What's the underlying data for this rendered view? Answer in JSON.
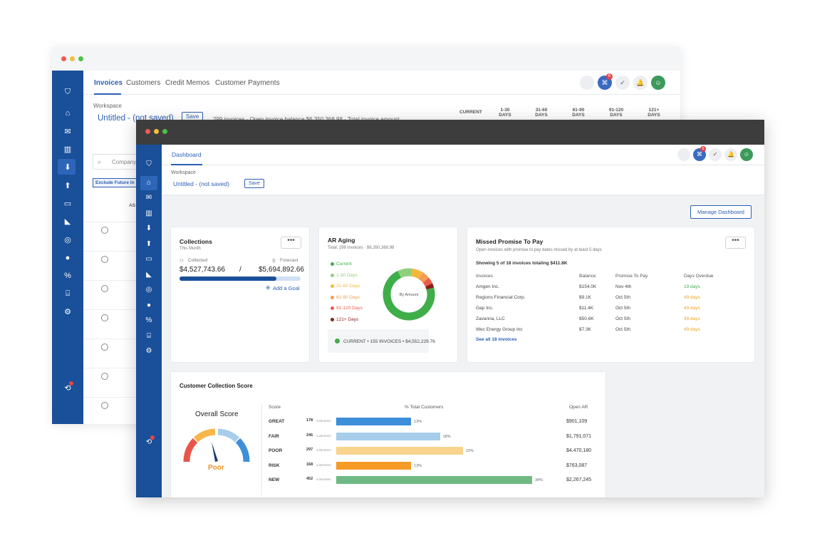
{
  "colors": {
    "sidebar": "#1a4f99",
    "accent": "#2c5fb3",
    "green": "#3fae49",
    "yellow": "#f5b83d",
    "orange": "#f39c53",
    "red": "#ea5a4b",
    "darkred": "#8a1d1d"
  },
  "back": {
    "tabs": [
      "Invoices",
      "Customers",
      "Credit Memos",
      "Customer Payments"
    ],
    "workspace_label": "Workspace",
    "workspace_name": "Untitled - (not saved)",
    "save_label": "Save",
    "summary": "299 invoices · Open invoice balance $6,350,368.98 · Total invoice amount",
    "aging_headers": [
      "CURRENT",
      "1-30 DAYS",
      "31-60 DAYS",
      "61-90 DAYS",
      "91-120 DAYS",
      "121+ DAYS"
    ],
    "search_placeholder": "Company",
    "filter_chip": "Exclude Future In",
    "col_partial": "AS",
    "badge": "6"
  },
  "front": {
    "tab": "Dashboard",
    "workspace_label": "Workspace",
    "workspace_name": "Untitled - (not saved)",
    "save_label": "Save",
    "manage_label": "Manage Dashboard",
    "badge": "6",
    "collections": {
      "title": "Collections",
      "sub": "This Month",
      "collected_label": "Collected",
      "forecast_label": "Forecast",
      "collected": "$4,527,743.66",
      "sep": "/",
      "forecast": "$5,694,892.66",
      "progress": 0.8,
      "goal": "Add a Goal"
    },
    "aging": {
      "title": "AR Aging",
      "sub": "Total: 299 Invoices · $6,350,368.98",
      "center": "By Amount",
      "legend": [
        {
          "label": "Current",
          "color": "#3fae49"
        },
        {
          "label": "1-30 Days",
          "color": "#8fd07c"
        },
        {
          "label": "31-60 Days",
          "color": "#f5b83d"
        },
        {
          "label": "61-90 Days",
          "color": "#f39c53"
        },
        {
          "label": "91-120 Days",
          "color": "#ea5a4b"
        },
        {
          "label": "121+ Days",
          "color": "#8a1d1d"
        }
      ],
      "slices": [
        0.72,
        0.09,
        0.07,
        0.05,
        0.04,
        0.03
      ],
      "footer": "CURRENT • 155 INVOICES • $4,552,229.76"
    },
    "missed": {
      "title": "Missed Promise To Pay",
      "sub": "Open invoices with promise to pay dates missed by at least 5 days",
      "showing": "Showing 5 of 18 invoices totaling $411.8K",
      "headers": [
        "Invoices",
        "Balance",
        "Promise To Pay",
        "Days Overdue"
      ],
      "rows": [
        [
          "Amgen Inc.",
          "$154.0K",
          "Nov 4th",
          "19 days"
        ],
        [
          "Regions Financial Corp.",
          "$9.1K",
          "Oct 5th",
          "49 days"
        ],
        [
          "Gap Inc.",
          "$11.4K",
          "Oct 5th",
          "49 days"
        ],
        [
          "Zavanna, LLC",
          "$50.6K",
          "Oct 5th",
          "49 days"
        ],
        [
          "Wec Energy Group Inc",
          "$7.3K",
          "Oct 5th",
          "49 days"
        ]
      ],
      "see_all": "See all 18 invoices"
    },
    "score": {
      "title": "Customer Collection Score",
      "overall": "Overall Score",
      "overall_value": "Poor",
      "headers": [
        "Score",
        "% Total Customers",
        "Open AR"
      ],
      "rows": [
        {
          "label": "GREAT",
          "count": "178",
          "unit": "customers",
          "pct": "13%",
          "pct_value": 13,
          "ar": "$901,109",
          "color": "#3d8fd9"
        },
        {
          "label": "FAIR",
          "count": "246",
          "unit": "customers",
          "pct": "18%",
          "pct_value": 18,
          "ar": "$1,791,071",
          "color": "#a7cdea"
        },
        {
          "label": "POOR",
          "count": "297",
          "unit": "customers",
          "pct": "22%",
          "pct_value": 22,
          "ar": "$4,470,180",
          "color": "#f9d48c"
        },
        {
          "label": "RISK",
          "count": "168",
          "unit": "customers",
          "pct": "13%",
          "pct_value": 13,
          "ar": "$763,087",
          "color": "#f59b26"
        },
        {
          "label": "NEW",
          "count": "452",
          "unit": "customers",
          "pct": "34%",
          "pct_value": 34,
          "ar": "$2,267,245",
          "color": "#6fb985"
        }
      ]
    }
  }
}
